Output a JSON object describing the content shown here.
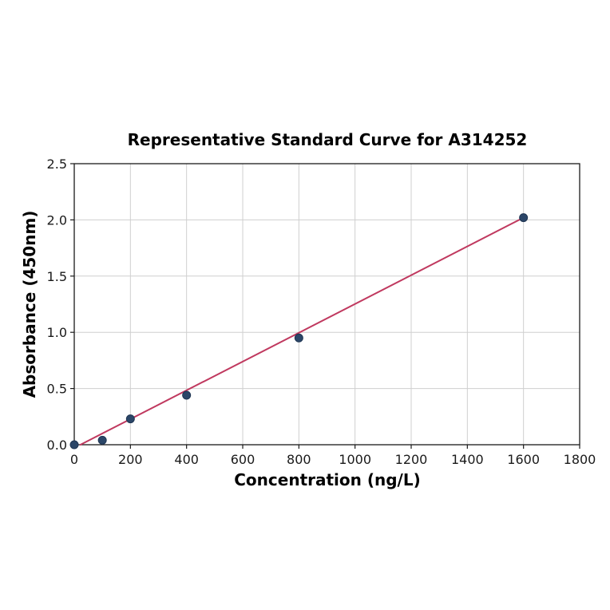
{
  "chart_data": {
    "type": "scatter",
    "title": "Representative Standard Curve for A314252",
    "xlabel": "Concentration (ng/L)",
    "ylabel": "Absorbance (450nm)",
    "xlim": [
      0,
      1800
    ],
    "ylim": [
      0,
      2.5
    ],
    "xticks": [
      0,
      200,
      400,
      600,
      800,
      1000,
      1200,
      1400,
      1600,
      1800
    ],
    "xtick_labels": [
      "0",
      "200",
      "400",
      "600",
      "800",
      "1000",
      "1200",
      "1400",
      "1600",
      "1800"
    ],
    "yticks": [
      0,
      0.5,
      1.0,
      1.5,
      2.0,
      2.5
    ],
    "ytick_labels": [
      "0.0",
      "0.5",
      "1.0",
      "1.5",
      "2.0",
      "2.5"
    ],
    "grid": true,
    "legend": "none",
    "points": {
      "x": [
        0,
        100,
        200,
        400,
        800,
        1600
      ],
      "y": [
        0.0,
        0.04,
        0.23,
        0.44,
        0.95,
        2.02
      ]
    },
    "fit_line": {
      "x1": 22,
      "y1": 0.0,
      "x2": 1600,
      "y2": 2.02
    },
    "colors": {
      "line": "#c0395f",
      "marker": "#2b4668",
      "marker_edge": "#1f3552",
      "grid": "#cfcfcf",
      "axis": "#1a1a1a",
      "text": "#000000"
    }
  }
}
